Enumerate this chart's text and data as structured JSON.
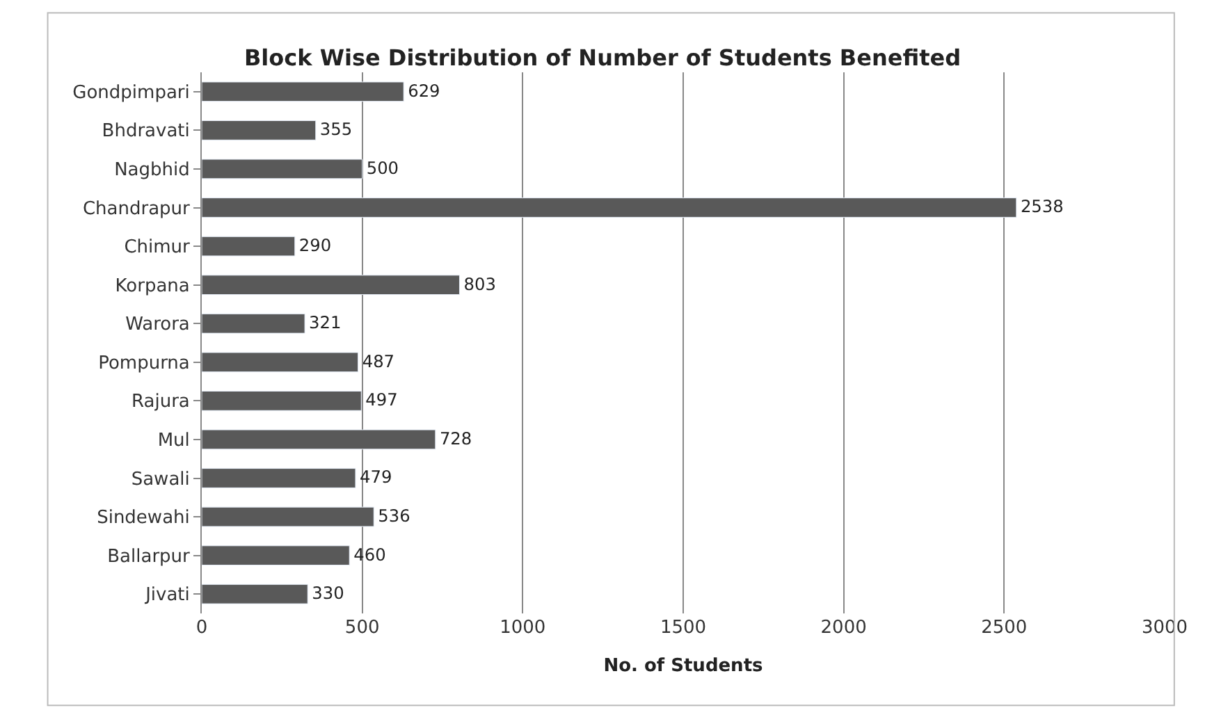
{
  "chart_data": {
    "type": "bar",
    "orientation": "horizontal",
    "title": "Block Wise Distribution of Number of Students Benefited",
    "xlabel": "No. of Students",
    "categories": [
      "Gondpimpari",
      "Bhdravati",
      "Nagbhid",
      "Chandrapur",
      "Chimur",
      "Korpana",
      "Warora",
      "Pompurna",
      "Rajura",
      "Mul",
      "Sawali",
      "Sindewahi",
      "Ballarpur",
      "Jivati"
    ],
    "values": [
      629,
      355,
      500,
      2538,
      290,
      803,
      321,
      487,
      497,
      728,
      479,
      536,
      460,
      330
    ],
    "color": "#595959",
    "xlim": [
      0,
      3000
    ],
    "xticks": [
      0,
      500,
      1000,
      1500,
      2000,
      2500,
      3000
    ],
    "grid": "x",
    "data_labels": true,
    "legend": false
  }
}
